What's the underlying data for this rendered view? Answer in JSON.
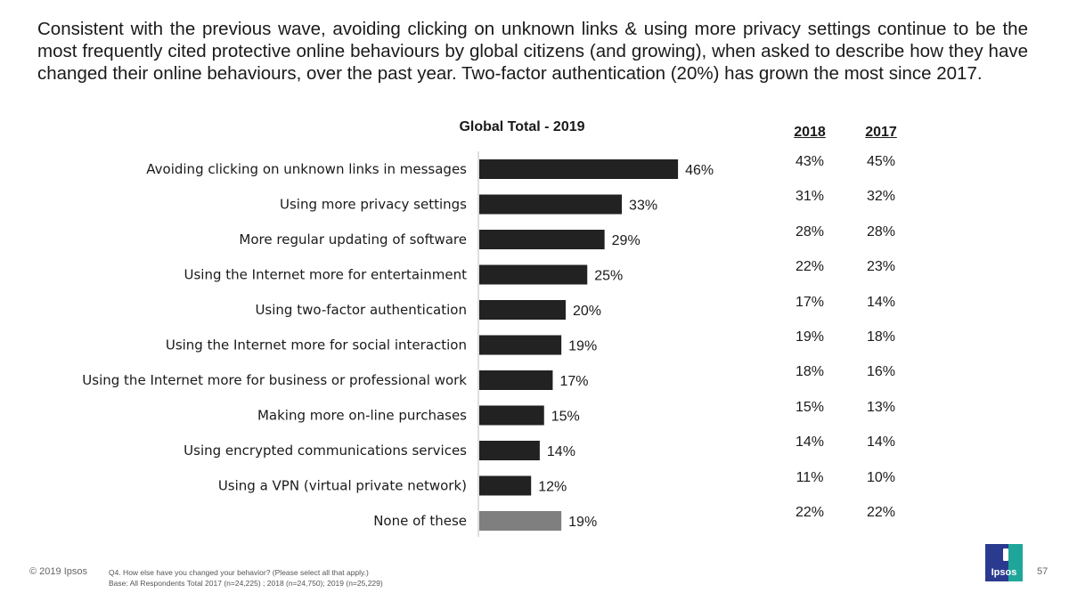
{
  "headline": "Consistent with the previous wave, avoiding clicking on unknown links & using more privacy settings continue to be the most frequently cited protective online behaviours by global citizens (and growing), when asked to describe how they have changed their online behaviours, over the past year. Two-factor authentication (20%) has grown the most since 2017.",
  "chart_data": {
    "type": "bar",
    "orientation": "horizontal",
    "title": "Global Total - 2019",
    "xlabel": "",
    "ylabel": "",
    "xlim": [
      0,
      100
    ],
    "grid": false,
    "categories": [
      "Avoiding clicking on unknown links in messages",
      "Using more privacy settings",
      "More regular updating of software",
      "Using the Internet more for entertainment",
      "Using two-factor authentication",
      "Using the Internet more for social interaction",
      "Using the Internet more for business or professional work",
      "Making more on-line purchases",
      "Using encrypted communications services",
      "Using a VPN (virtual private network)",
      "None of these"
    ],
    "series": [
      {
        "name": "2019",
        "values": [
          46,
          33,
          29,
          25,
          20,
          19,
          17,
          15,
          14,
          12,
          19
        ]
      }
    ],
    "value_labels": [
      "46%",
      "33%",
      "29%",
      "25%",
      "20%",
      "19%",
      "17%",
      "15%",
      "14%",
      "12%",
      "19%"
    ],
    "bar_color": "#222222",
    "highlight_color": "#7f7f7f",
    "highlight_index": 10
  },
  "comparison": {
    "headers": [
      "2018",
      "2017"
    ],
    "values_2018": [
      "43%",
      "31%",
      "28%",
      "22%",
      "17%",
      "19%",
      "18%",
      "15%",
      "14%",
      "11%",
      "22%"
    ],
    "values_2017": [
      "45%",
      "32%",
      "28%",
      "23%",
      "14%",
      "18%",
      "16%",
      "13%",
      "14%",
      "10%",
      "22%"
    ]
  },
  "footer": {
    "copyright": "© 2019 Ipsos",
    "question": "Q4. How else have you changed your behavior? (Please select all that apply.)",
    "base": "Base: All Respondents Total  2017 (n=24,225) ; 2018 (n=24,750); 2019 (n=25,229)",
    "logo_text": "Ipsos",
    "page_number": "57"
  }
}
